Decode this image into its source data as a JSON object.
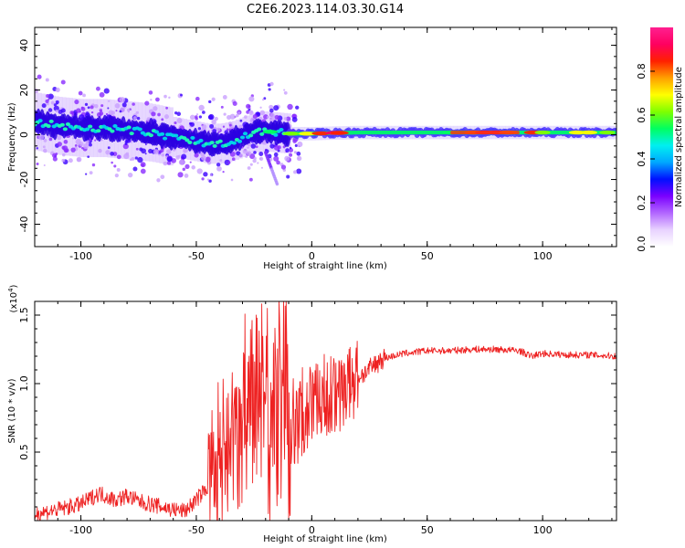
{
  "figure_title": "C2E6.2023.114.03.30.G14",
  "chart_data": [
    {
      "type": "heatmap",
      "title": "",
      "xlabel": "Height of straight line (km)",
      "ylabel": "Frequency (Hz)",
      "xlim": [
        -120,
        132
      ],
      "ylim": [
        -50,
        48
      ],
      "xticks": [
        -100,
        -50,
        0,
        50,
        100
      ],
      "yticks": [
        -40,
        -20,
        0,
        20,
        40
      ],
      "grid": false,
      "colorbar": {
        "label": "Normalized spectral amplitude",
        "range": [
          0,
          1
        ],
        "ticks": [
          "0.0",
          "0.2",
          "0.4",
          "0.6",
          "0.8"
        ],
        "colormap": "rainbow (white-violet-blue-cyan-green-yellow-red-magenta)",
        "colors": [
          "#ffffff",
          "#e8d2ff",
          "#b266ff",
          "#7a00ff",
          "#0010ff",
          "#00a8ff",
          "#00f0f0",
          "#00ff60",
          "#7fff00",
          "#ffff00",
          "#ffa000",
          "#ff2000",
          "#ff0060",
          "#ff2090"
        ]
      },
      "ridge": {
        "description": "frequency centroid vs height",
        "x": [
          -120,
          -110,
          -100,
          -90,
          -80,
          -70,
          -60,
          -50,
          -45,
          -40,
          -35,
          -30,
          -25,
          -20,
          -15,
          -10,
          -5,
          0,
          10,
          20,
          40,
          60,
          80,
          100,
          120,
          132
        ],
        "y": [
          6,
          4,
          3,
          3,
          2,
          1,
          -1,
          -3,
          -4,
          -4,
          -3,
          -1,
          1,
          1.5,
          1,
          0.5,
          0.5,
          0.5,
          0.8,
          1,
          1,
          1,
          1,
          1,
          1,
          1
        ]
      }
    },
    {
      "type": "line",
      "title": "",
      "xlabel": "Height of straight line (km)",
      "ylabel": "SNR (10 * v/v)",
      "y_scale_note": "(x10^4)",
      "y_scale_base": "(x10",
      "y_scale_exp": "4",
      "y_scale_close": ")",
      "xlim": [
        -120,
        132
      ],
      "ylim": [
        0,
        1.6
      ],
      "xticks": [
        -100,
        -50,
        0,
        50,
        100
      ],
      "yticks": [
        0.5,
        1.0,
        1.5
      ],
      "ytick_labels": [
        "0.5",
        "1.0",
        "1.5"
      ],
      "grid": false,
      "series": [
        {
          "color": "#ee2222",
          "x": [
            -120,
            -110,
            -100,
            -92,
            -85,
            -80,
            -75,
            -70,
            -65,
            -60,
            -55,
            -50,
            -45,
            -40,
            -35,
            -30,
            -27,
            -25,
            -22,
            -20,
            -18,
            -15,
            -13,
            -11,
            -10,
            -8,
            -5,
            -3,
            0,
            3,
            6,
            10,
            13,
            16,
            20,
            25,
            30,
            40,
            50,
            60,
            70,
            80,
            90,
            95,
            100,
            110,
            120,
            132
          ],
          "y": [
            0.05,
            0.08,
            0.12,
            0.2,
            0.15,
            0.18,
            0.14,
            0.12,
            0.1,
            0.08,
            0.07,
            0.15,
            0.25,
            0.35,
            0.45,
            0.6,
            0.75,
            0.8,
            0.85,
            0.8,
            0.75,
            0.85,
            0.9,
            1.0,
            0.7,
            0.65,
            0.75,
            0.8,
            0.85,
            0.9,
            0.92,
            0.88,
            0.95,
            1.0,
            1.05,
            1.1,
            1.18,
            1.22,
            1.24,
            1.24,
            1.25,
            1.25,
            1.24,
            1.2,
            1.22,
            1.21,
            1.21,
            1.2
          ]
        }
      ]
    }
  ]
}
